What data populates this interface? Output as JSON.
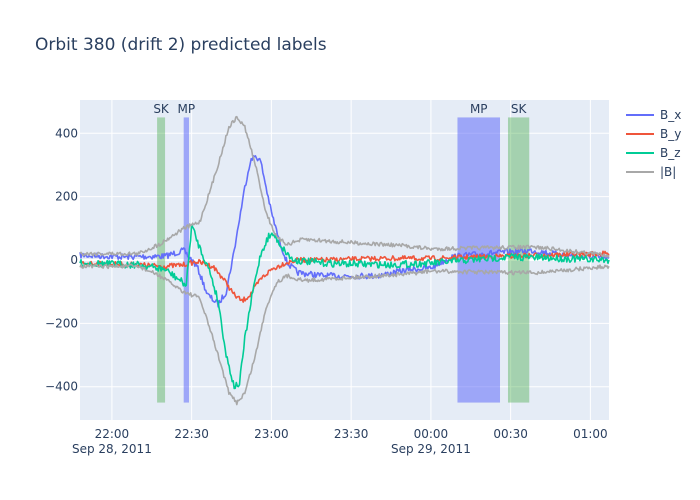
{
  "chart_data": {
    "type": "line",
    "title": "Orbit 380 (drift 2) predicted labels",
    "xlabel": "",
    "ylabel": "",
    "x_unit": "time",
    "x_range": [
      "2011-09-28 21:48",
      "2011-09-29 01:07"
    ],
    "ylim": [
      -505,
      505
    ],
    "x_ticks": [
      {
        "t": "2011-09-28 22:00",
        "label": "22:00",
        "sublabel": "Sep 28, 2011"
      },
      {
        "t": "2011-09-28 22:30",
        "label": "22:30",
        "sublabel": ""
      },
      {
        "t": "2011-09-28 23:00",
        "label": "23:00",
        "sublabel": ""
      },
      {
        "t": "2011-09-28 23:30",
        "label": "23:30",
        "sublabel": ""
      },
      {
        "t": "2011-09-29 00:00",
        "label": "00:00",
        "sublabel": "Sep 29, 2011"
      },
      {
        "t": "2011-09-29 00:30",
        "label": "00:30",
        "sublabel": ""
      },
      {
        "t": "2011-09-29 01:00",
        "label": "01:00",
        "sublabel": ""
      }
    ],
    "y_ticks": [
      {
        "v": 400,
        "label": "400"
      },
      {
        "v": 200,
        "label": "200"
      },
      {
        "v": 0,
        "label": "0"
      },
      {
        "v": -200,
        "label": "−200"
      },
      {
        "v": -400,
        "label": "−400"
      }
    ],
    "grid": true,
    "legend_position": "top-right",
    "series": [
      {
        "name": "B_x",
        "color": "#636efa",
        "noise": 6,
        "x": [
          "2011-09-28 21:48",
          "2011-09-28 22:05",
          "2011-09-28 22:20",
          "2011-09-28 22:27",
          "2011-09-28 22:32",
          "2011-09-28 22:36",
          "2011-09-28 22:40",
          "2011-09-28 22:43",
          "2011-09-28 22:46",
          "2011-09-28 22:48",
          "2011-09-28 22:50",
          "2011-09-28 22:52",
          "2011-09-28 22:54",
          "2011-09-28 22:56",
          "2011-09-28 22:58",
          "2011-09-28 23:00",
          "2011-09-28 23:03",
          "2011-09-28 23:06",
          "2011-09-28 23:10",
          "2011-09-28 23:20",
          "2011-09-28 23:40",
          "2011-09-28 23:52",
          "2011-09-29 00:00",
          "2011-09-29 00:08",
          "2011-09-29 00:20",
          "2011-09-29 00:38",
          "2011-09-29 00:50",
          "2011-09-29 01:07"
        ],
        "y": [
          15,
          10,
          12,
          30,
          -20,
          -110,
          -140,
          -100,
          30,
          130,
          230,
          310,
          330,
          310,
          230,
          150,
          60,
          -10,
          -40,
          -50,
          -50,
          -30,
          -25,
          10,
          20,
          30,
          15,
          5
        ]
      },
      {
        "name": "B_y",
        "color": "#ef553b",
        "noise": 5,
        "x": [
          "2011-09-28 21:48",
          "2011-09-28 22:10",
          "2011-09-28 22:20",
          "2011-09-28 22:27",
          "2011-09-28 22:32",
          "2011-09-28 22:38",
          "2011-09-28 22:42",
          "2011-09-28 22:46",
          "2011-09-28 22:49",
          "2011-09-28 22:52",
          "2011-09-28 22:56",
          "2011-09-28 23:00",
          "2011-09-28 23:05",
          "2011-09-28 23:10",
          "2011-09-28 23:20",
          "2011-09-28 23:40",
          "2011-09-29 00:00",
          "2011-09-29 00:20",
          "2011-09-29 00:40",
          "2011-09-29 01:07"
        ],
        "y": [
          -10,
          -15,
          -20,
          -15,
          -5,
          -20,
          -60,
          -110,
          -130,
          -110,
          -60,
          -30,
          -10,
          0,
          0,
          5,
          5,
          10,
          15,
          20
        ]
      },
      {
        "name": "B_z",
        "color": "#00cc96",
        "noise": 7,
        "x": [
          "2011-09-28 21:48",
          "2011-09-28 22:10",
          "2011-09-28 22:20",
          "2011-09-28 22:25",
          "2011-09-28 22:28",
          "2011-09-28 22:30",
          "2011-09-28 22:33",
          "2011-09-28 22:37",
          "2011-09-28 22:40",
          "2011-09-28 22:43",
          "2011-09-28 22:46",
          "2011-09-28 22:48",
          "2011-09-28 22:50",
          "2011-09-28 22:53",
          "2011-09-28 22:56",
          "2011-09-28 22:59",
          "2011-09-28 23:01",
          "2011-09-28 23:04",
          "2011-09-28 23:08",
          "2011-09-28 23:20",
          "2011-09-28 23:45",
          "2011-09-29 00:00",
          "2011-09-29 00:30",
          "2011-09-29 01:07"
        ],
        "y": [
          -10,
          -15,
          -30,
          -60,
          -80,
          110,
          40,
          -40,
          -130,
          -300,
          -400,
          -390,
          -250,
          -100,
          20,
          75,
          80,
          40,
          0,
          -10,
          -15,
          -10,
          10,
          0
        ]
      },
      {
        "name": "|B|",
        "color": "#a8a8a8",
        "noise": 4,
        "x": [
          "2011-09-28 21:48",
          "2011-09-28 22:10",
          "2011-09-28 22:18",
          "2011-09-28 22:27",
          "2011-09-28 22:33",
          "2011-09-28 22:37",
          "2011-09-28 22:41",
          "2011-09-28 22:44",
          "2011-09-28 22:47",
          "2011-09-28 22:50",
          "2011-09-28 22:54",
          "2011-09-28 22:58",
          "2011-09-28 23:02",
          "2011-09-28 23:06",
          "2011-09-28 23:12",
          "2011-09-28 23:30",
          "2011-09-28 23:50",
          "2011-09-29 00:00",
          "2011-09-29 00:30",
          "2011-09-29 00:40",
          "2011-09-29 01:07"
        ],
        "y": [
          20,
          20,
          50,
          100,
          120,
          220,
          330,
          420,
          450,
          420,
          300,
          150,
          70,
          50,
          65,
          55,
          45,
          35,
          40,
          40,
          15
        ]
      },
      {
        "name": "",
        "color": "#a8a8a8",
        "noise": 4,
        "legend": false,
        "x": [
          "2011-09-28 21:48",
          "2011-09-28 22:10",
          "2011-09-28 22:18",
          "2011-09-28 22:27",
          "2011-09-28 22:33",
          "2011-09-28 22:37",
          "2011-09-28 22:41",
          "2011-09-28 22:44",
          "2011-09-28 22:47",
          "2011-09-28 22:50",
          "2011-09-28 22:54",
          "2011-09-28 22:58",
          "2011-09-28 23:02",
          "2011-09-28 23:06",
          "2011-09-28 23:12",
          "2011-09-28 23:30",
          "2011-09-28 23:50",
          "2011-09-29 00:00",
          "2011-09-29 00:30",
          "2011-09-29 00:40",
          "2011-09-29 01:07"
        ],
        "y": [
          -20,
          -20,
          -50,
          -100,
          -120,
          -220,
          -330,
          -420,
          -450,
          -420,
          -300,
          -150,
          -70,
          -50,
          -65,
          -55,
          -45,
          -35,
          -40,
          -40,
          -20
        ]
      }
    ],
    "regions": [
      {
        "label": "SK",
        "start": "2011-09-28 22:17",
        "end": "2011-09-28 22:20",
        "color": "#2ca02c",
        "opacity": 0.35,
        "y_range": [
          -450,
          450
        ]
      },
      {
        "label": "MP",
        "start": "2011-09-28 22:27",
        "end": "2011-09-28 22:29",
        "color": "#636efa",
        "opacity": 0.55,
        "y_range": [
          -450,
          450
        ]
      },
      {
        "label": "MP",
        "start": "2011-09-29 00:10",
        "end": "2011-09-29 00:26",
        "color": "#636efa",
        "opacity": 0.55,
        "y_range": [
          -450,
          450
        ]
      },
      {
        "label": "SK",
        "start": "2011-09-29 00:29",
        "end": "2011-09-29 00:37",
        "color": "#2ca02c",
        "opacity": 0.35,
        "y_range": [
          -450,
          450
        ]
      }
    ]
  }
}
